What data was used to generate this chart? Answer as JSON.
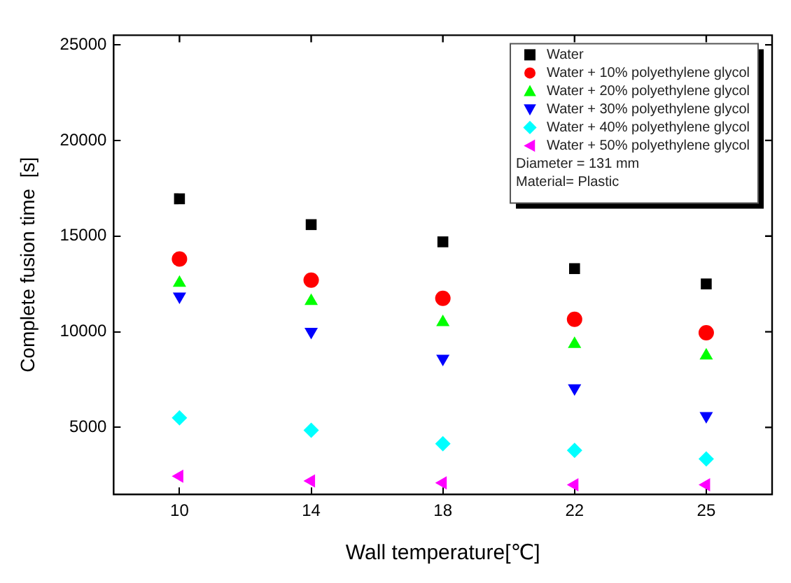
{
  "chart_data": {
    "type": "scatter",
    "xlabel": "Wall temperature[℃]",
    "ylabel": "Complete fusion time  [s]",
    "categories": [
      "10",
      "14",
      "18",
      "22",
      "25"
    ],
    "series": [
      {
        "name": "Water",
        "color": "#000000",
        "marker": "square",
        "values": [
          16950,
          15600,
          14700,
          13300,
          12500
        ]
      },
      {
        "name": "Water + 10% polyethylene glycol",
        "color": "#ff0000",
        "marker": "circle",
        "values": [
          13800,
          12700,
          11750,
          10650,
          9950
        ]
      },
      {
        "name": "Water + 20% polyethylene glycol",
        "color": "#00ff00",
        "marker": "triangle",
        "values": [
          12550,
          11600,
          10500,
          9350,
          8750
        ]
      },
      {
        "name": "Water + 30% polyethylene glycol",
        "color": "#0000ff",
        "marker": "triangle-down",
        "values": [
          11850,
          10000,
          8600,
          7050,
          5600
        ]
      },
      {
        "name": "Water + 40% polyethylene glycol",
        "color": "#00ffff",
        "marker": "diamond",
        "values": [
          5500,
          4850,
          4150,
          3800,
          3350
        ]
      },
      {
        "name": "Water + 50% polyethylene glycol",
        "color": "#ff00ff",
        "marker": "triangle-left",
        "values": [
          2450,
          2200,
          2100,
          2000,
          2000
        ]
      }
    ],
    "ylim": [
      1500,
      25500
    ],
    "yticks": [
      5000,
      10000,
      15000,
      20000,
      25000
    ],
    "grid": false,
    "legend": "top right",
    "annotations": [
      "Diameter = 131 mm",
      "Material= Plastic"
    ]
  }
}
